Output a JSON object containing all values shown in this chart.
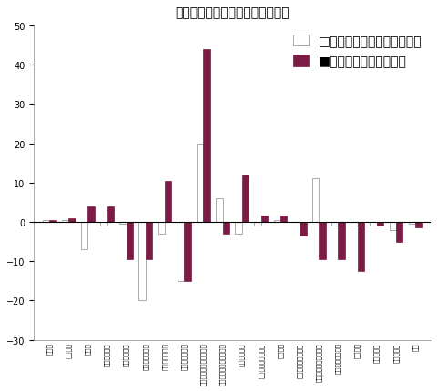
{
  "title": "業種別生産の前月比・前年同月比",
  "categories": [
    "鉱工業",
    "製造工業",
    "鉄鋼業",
    "非鉄金属工業",
    "金属製品工業",
    "はん用機械工業",
    "生産用機械工業",
    "業務用機材工業",
    "電子部品・デバイス工業",
    "電気・情報通信機械工業",
    "輸送機械工業",
    "窯業・土石製品工業",
    "化学工業",
    "石油・石炭製品工業",
    "プラスチック製品工業",
    "繊・繊加工品工業",
    "遷雑工業",
    "食料品工業",
    "その他工業",
    "鉱業"
  ],
  "mom_values": [
    0.5,
    0.5,
    -7.0,
    -1.0,
    -0.5,
    -20.0,
    -3.0,
    -15.0,
    20.0,
    6.0,
    -3.0,
    -1.0,
    0.5,
    0.0,
    11.0,
    -1.0,
    -1.0,
    -1.0,
    -2.0,
    -0.5
  ],
  "yoy_values": [
    0.5,
    1.0,
    4.0,
    4.0,
    -9.5,
    -9.5,
    10.5,
    -15.0,
    44.0,
    -3.0,
    12.0,
    1.5,
    1.5,
    -3.5,
    -9.5,
    -9.5,
    -12.5,
    -1.0,
    -5.0,
    -1.5
  ],
  "mom_color": "#ffffff",
  "mom_edge_color": "#aaaaaa",
  "yoy_color": "#7b1c46",
  "ylim": [
    -30,
    50
  ],
  "yticks": [
    -30,
    -20,
    -10,
    0,
    10,
    20,
    30,
    40,
    50
  ],
  "legend_mom": "□前月比（季節調整済指数）",
  "legend_yoy": "■前年同月比（原指数）",
  "background_color": "#ffffff"
}
